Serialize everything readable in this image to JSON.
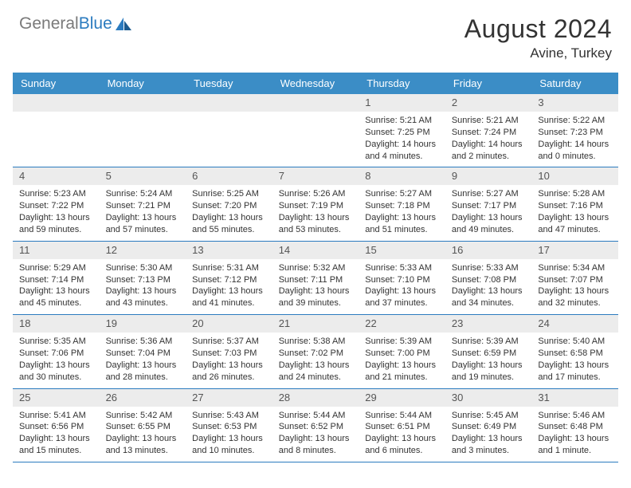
{
  "header": {
    "logo_general": "General",
    "logo_blue": "Blue",
    "title": "August 2024",
    "location": "Avine, Turkey"
  },
  "colors": {
    "header_bar": "#3b8dc6",
    "divider": "#2b7bbf",
    "daynum_bg": "#ececec",
    "text": "#333333",
    "logo_gray": "#7a7a7a",
    "logo_blue": "#2b7bbf"
  },
  "daynames": [
    "Sunday",
    "Monday",
    "Tuesday",
    "Wednesday",
    "Thursday",
    "Friday",
    "Saturday"
  ],
  "weeks": [
    [
      {
        "num": "",
        "lines": []
      },
      {
        "num": "",
        "lines": []
      },
      {
        "num": "",
        "lines": []
      },
      {
        "num": "",
        "lines": []
      },
      {
        "num": "1",
        "lines": [
          "Sunrise: 5:21 AM",
          "Sunset: 7:25 PM",
          "Daylight: 14 hours",
          "and 4 minutes."
        ]
      },
      {
        "num": "2",
        "lines": [
          "Sunrise: 5:21 AM",
          "Sunset: 7:24 PM",
          "Daylight: 14 hours",
          "and 2 minutes."
        ]
      },
      {
        "num": "3",
        "lines": [
          "Sunrise: 5:22 AM",
          "Sunset: 7:23 PM",
          "Daylight: 14 hours",
          "and 0 minutes."
        ]
      }
    ],
    [
      {
        "num": "4",
        "lines": [
          "Sunrise: 5:23 AM",
          "Sunset: 7:22 PM",
          "Daylight: 13 hours",
          "and 59 minutes."
        ]
      },
      {
        "num": "5",
        "lines": [
          "Sunrise: 5:24 AM",
          "Sunset: 7:21 PM",
          "Daylight: 13 hours",
          "and 57 minutes."
        ]
      },
      {
        "num": "6",
        "lines": [
          "Sunrise: 5:25 AM",
          "Sunset: 7:20 PM",
          "Daylight: 13 hours",
          "and 55 minutes."
        ]
      },
      {
        "num": "7",
        "lines": [
          "Sunrise: 5:26 AM",
          "Sunset: 7:19 PM",
          "Daylight: 13 hours",
          "and 53 minutes."
        ]
      },
      {
        "num": "8",
        "lines": [
          "Sunrise: 5:27 AM",
          "Sunset: 7:18 PM",
          "Daylight: 13 hours",
          "and 51 minutes."
        ]
      },
      {
        "num": "9",
        "lines": [
          "Sunrise: 5:27 AM",
          "Sunset: 7:17 PM",
          "Daylight: 13 hours",
          "and 49 minutes."
        ]
      },
      {
        "num": "10",
        "lines": [
          "Sunrise: 5:28 AM",
          "Sunset: 7:16 PM",
          "Daylight: 13 hours",
          "and 47 minutes."
        ]
      }
    ],
    [
      {
        "num": "11",
        "lines": [
          "Sunrise: 5:29 AM",
          "Sunset: 7:14 PM",
          "Daylight: 13 hours",
          "and 45 minutes."
        ]
      },
      {
        "num": "12",
        "lines": [
          "Sunrise: 5:30 AM",
          "Sunset: 7:13 PM",
          "Daylight: 13 hours",
          "and 43 minutes."
        ]
      },
      {
        "num": "13",
        "lines": [
          "Sunrise: 5:31 AM",
          "Sunset: 7:12 PM",
          "Daylight: 13 hours",
          "and 41 minutes."
        ]
      },
      {
        "num": "14",
        "lines": [
          "Sunrise: 5:32 AM",
          "Sunset: 7:11 PM",
          "Daylight: 13 hours",
          "and 39 minutes."
        ]
      },
      {
        "num": "15",
        "lines": [
          "Sunrise: 5:33 AM",
          "Sunset: 7:10 PM",
          "Daylight: 13 hours",
          "and 37 minutes."
        ]
      },
      {
        "num": "16",
        "lines": [
          "Sunrise: 5:33 AM",
          "Sunset: 7:08 PM",
          "Daylight: 13 hours",
          "and 34 minutes."
        ]
      },
      {
        "num": "17",
        "lines": [
          "Sunrise: 5:34 AM",
          "Sunset: 7:07 PM",
          "Daylight: 13 hours",
          "and 32 minutes."
        ]
      }
    ],
    [
      {
        "num": "18",
        "lines": [
          "Sunrise: 5:35 AM",
          "Sunset: 7:06 PM",
          "Daylight: 13 hours",
          "and 30 minutes."
        ]
      },
      {
        "num": "19",
        "lines": [
          "Sunrise: 5:36 AM",
          "Sunset: 7:04 PM",
          "Daylight: 13 hours",
          "and 28 minutes."
        ]
      },
      {
        "num": "20",
        "lines": [
          "Sunrise: 5:37 AM",
          "Sunset: 7:03 PM",
          "Daylight: 13 hours",
          "and 26 minutes."
        ]
      },
      {
        "num": "21",
        "lines": [
          "Sunrise: 5:38 AM",
          "Sunset: 7:02 PM",
          "Daylight: 13 hours",
          "and 24 minutes."
        ]
      },
      {
        "num": "22",
        "lines": [
          "Sunrise: 5:39 AM",
          "Sunset: 7:00 PM",
          "Daylight: 13 hours",
          "and 21 minutes."
        ]
      },
      {
        "num": "23",
        "lines": [
          "Sunrise: 5:39 AM",
          "Sunset: 6:59 PM",
          "Daylight: 13 hours",
          "and 19 minutes."
        ]
      },
      {
        "num": "24",
        "lines": [
          "Sunrise: 5:40 AM",
          "Sunset: 6:58 PM",
          "Daylight: 13 hours",
          "and 17 minutes."
        ]
      }
    ],
    [
      {
        "num": "25",
        "lines": [
          "Sunrise: 5:41 AM",
          "Sunset: 6:56 PM",
          "Daylight: 13 hours",
          "and 15 minutes."
        ]
      },
      {
        "num": "26",
        "lines": [
          "Sunrise: 5:42 AM",
          "Sunset: 6:55 PM",
          "Daylight: 13 hours",
          "and 13 minutes."
        ]
      },
      {
        "num": "27",
        "lines": [
          "Sunrise: 5:43 AM",
          "Sunset: 6:53 PM",
          "Daylight: 13 hours",
          "and 10 minutes."
        ]
      },
      {
        "num": "28",
        "lines": [
          "Sunrise: 5:44 AM",
          "Sunset: 6:52 PM",
          "Daylight: 13 hours",
          "and 8 minutes."
        ]
      },
      {
        "num": "29",
        "lines": [
          "Sunrise: 5:44 AM",
          "Sunset: 6:51 PM",
          "Daylight: 13 hours",
          "and 6 minutes."
        ]
      },
      {
        "num": "30",
        "lines": [
          "Sunrise: 5:45 AM",
          "Sunset: 6:49 PM",
          "Daylight: 13 hours",
          "and 3 minutes."
        ]
      },
      {
        "num": "31",
        "lines": [
          "Sunrise: 5:46 AM",
          "Sunset: 6:48 PM",
          "Daylight: 13 hours",
          "and 1 minute."
        ]
      }
    ]
  ]
}
